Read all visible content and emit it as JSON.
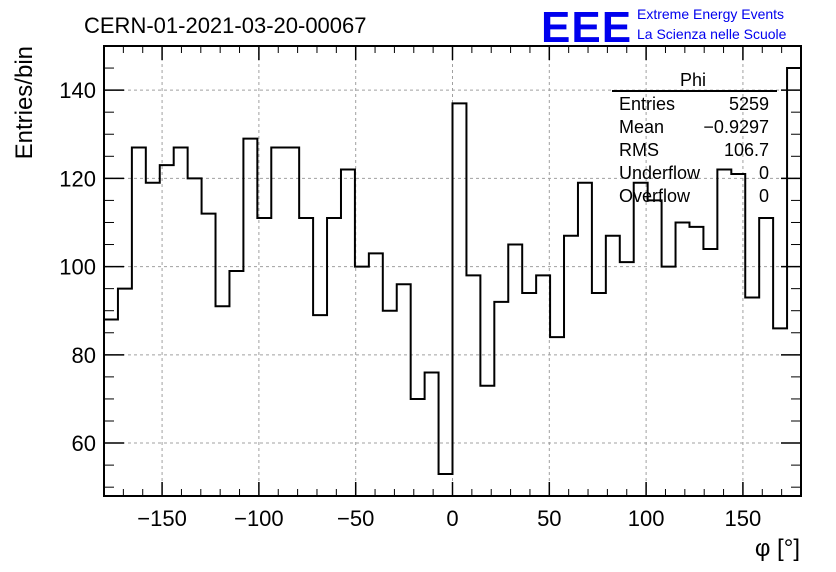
{
  "chart_data": {
    "type": "bar",
    "style": "step-histogram",
    "title": "CERN-01-2021-03-20-00067",
    "xlabel": "φ [°]",
    "ylabel": "Entries/bin",
    "xlim": [
      -180,
      180
    ],
    "ylim": [
      48,
      150
    ],
    "grid": true,
    "bin_width": 7.2,
    "x_ticks": [
      -150,
      -100,
      -50,
      0,
      50,
      100,
      150
    ],
    "x_tick_labels": [
      "−150",
      "−100",
      "−50",
      "0",
      "50",
      "100",
      "150"
    ],
    "y_ticks": [
      60,
      80,
      100,
      120,
      140
    ],
    "y_tick_labels": [
      "60",
      "80",
      "100",
      "120",
      "140"
    ],
    "values": [
      88,
      95,
      127,
      119,
      123,
      127,
      120,
      112,
      91,
      99,
      129,
      111,
      127,
      127,
      111,
      89,
      111,
      122,
      100,
      103,
      90,
      96,
      70,
      76,
      53,
      137,
      98,
      73,
      92,
      105,
      94,
      98,
      84,
      107,
      119,
      94,
      107,
      101,
      119,
      115,
      100,
      110,
      109,
      104,
      122,
      121,
      93,
      111,
      86,
      145
    ],
    "line_color": "#000000",
    "stats_box": {
      "title": "Phi",
      "rows": [
        {
          "label": "Entries",
          "value": "5259"
        },
        {
          "label": "Mean",
          "value": "−0.9297"
        },
        {
          "label": "RMS",
          "value": "106.7"
        },
        {
          "label": "Underflow",
          "value": "0"
        },
        {
          "label": "Overflow",
          "value": "0"
        }
      ]
    }
  },
  "logo": {
    "mark": "EEE",
    "line1": "Extreme Energy Events",
    "line2": "La Scienza nelle Scuole",
    "color": "#0000ee"
  }
}
